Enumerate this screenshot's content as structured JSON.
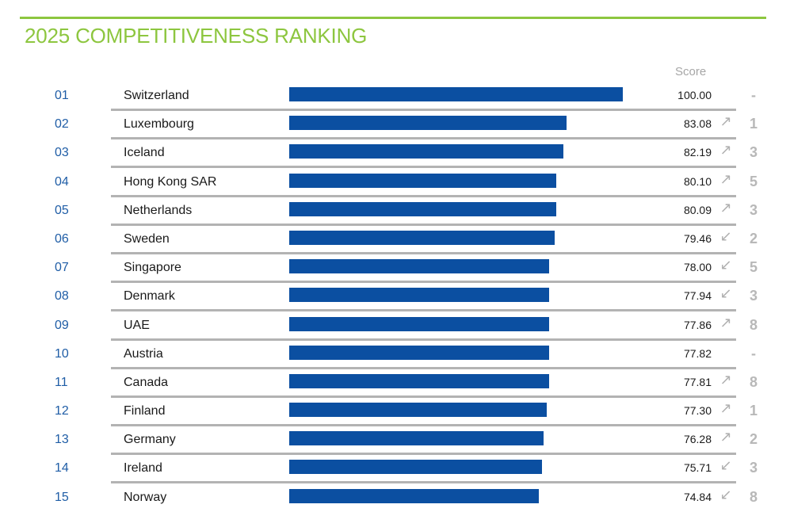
{
  "title": "2025 COMPETITIVENESS RANKING",
  "score_header": "Score",
  "colors": {
    "accent": "#8dc63f",
    "bar": "#0b4fa1",
    "rank": "#1f5da6",
    "muted": "#b0b0b0"
  },
  "chart_data": {
    "type": "bar",
    "orientation": "horizontal",
    "title": "2025 COMPETITIVENESS RANKING",
    "value_label": "Score",
    "xlim": [
      0,
      100
    ],
    "rows": [
      {
        "rank": "01",
        "country": "Switzerland",
        "score": 100.0,
        "score_label": "100.00",
        "trend": "none",
        "change": "-"
      },
      {
        "rank": "02",
        "country": "Luxembourg",
        "score": 83.08,
        "score_label": "83.08",
        "trend": "up",
        "change": "1"
      },
      {
        "rank": "03",
        "country": "Iceland",
        "score": 82.19,
        "score_label": "82.19",
        "trend": "up",
        "change": "3"
      },
      {
        "rank": "04",
        "country": "Hong Kong SAR",
        "score": 80.1,
        "score_label": "80.10",
        "trend": "up",
        "change": "5"
      },
      {
        "rank": "05",
        "country": "Netherlands",
        "score": 80.09,
        "score_label": "80.09",
        "trend": "up",
        "change": "3"
      },
      {
        "rank": "06",
        "country": "Sweden",
        "score": 79.46,
        "score_label": "79.46",
        "trend": "down",
        "change": "2"
      },
      {
        "rank": "07",
        "country": "Singapore",
        "score": 78.0,
        "score_label": "78.00",
        "trend": "down",
        "change": "5"
      },
      {
        "rank": "08",
        "country": "Denmark",
        "score": 77.94,
        "score_label": "77.94",
        "trend": "down",
        "change": "3"
      },
      {
        "rank": "09",
        "country": "UAE",
        "score": 77.86,
        "score_label": "77.86",
        "trend": "up",
        "change": "8"
      },
      {
        "rank": "10",
        "country": "Austria",
        "score": 77.82,
        "score_label": "77.82",
        "trend": "none",
        "change": "-"
      },
      {
        "rank": "11",
        "country": "Canada",
        "score": 77.81,
        "score_label": "77.81",
        "trend": "up",
        "change": "8"
      },
      {
        "rank": "12",
        "country": "Finland",
        "score": 77.3,
        "score_label": "77.30",
        "trend": "up",
        "change": "1"
      },
      {
        "rank": "13",
        "country": "Germany",
        "score": 76.28,
        "score_label": "76.28",
        "trend": "up",
        "change": "2"
      },
      {
        "rank": "14",
        "country": "Ireland",
        "score": 75.71,
        "score_label": "75.71",
        "trend": "down",
        "change": "3"
      },
      {
        "rank": "15",
        "country": "Norway",
        "score": 74.84,
        "score_label": "74.84",
        "trend": "down",
        "change": "8"
      }
    ]
  }
}
